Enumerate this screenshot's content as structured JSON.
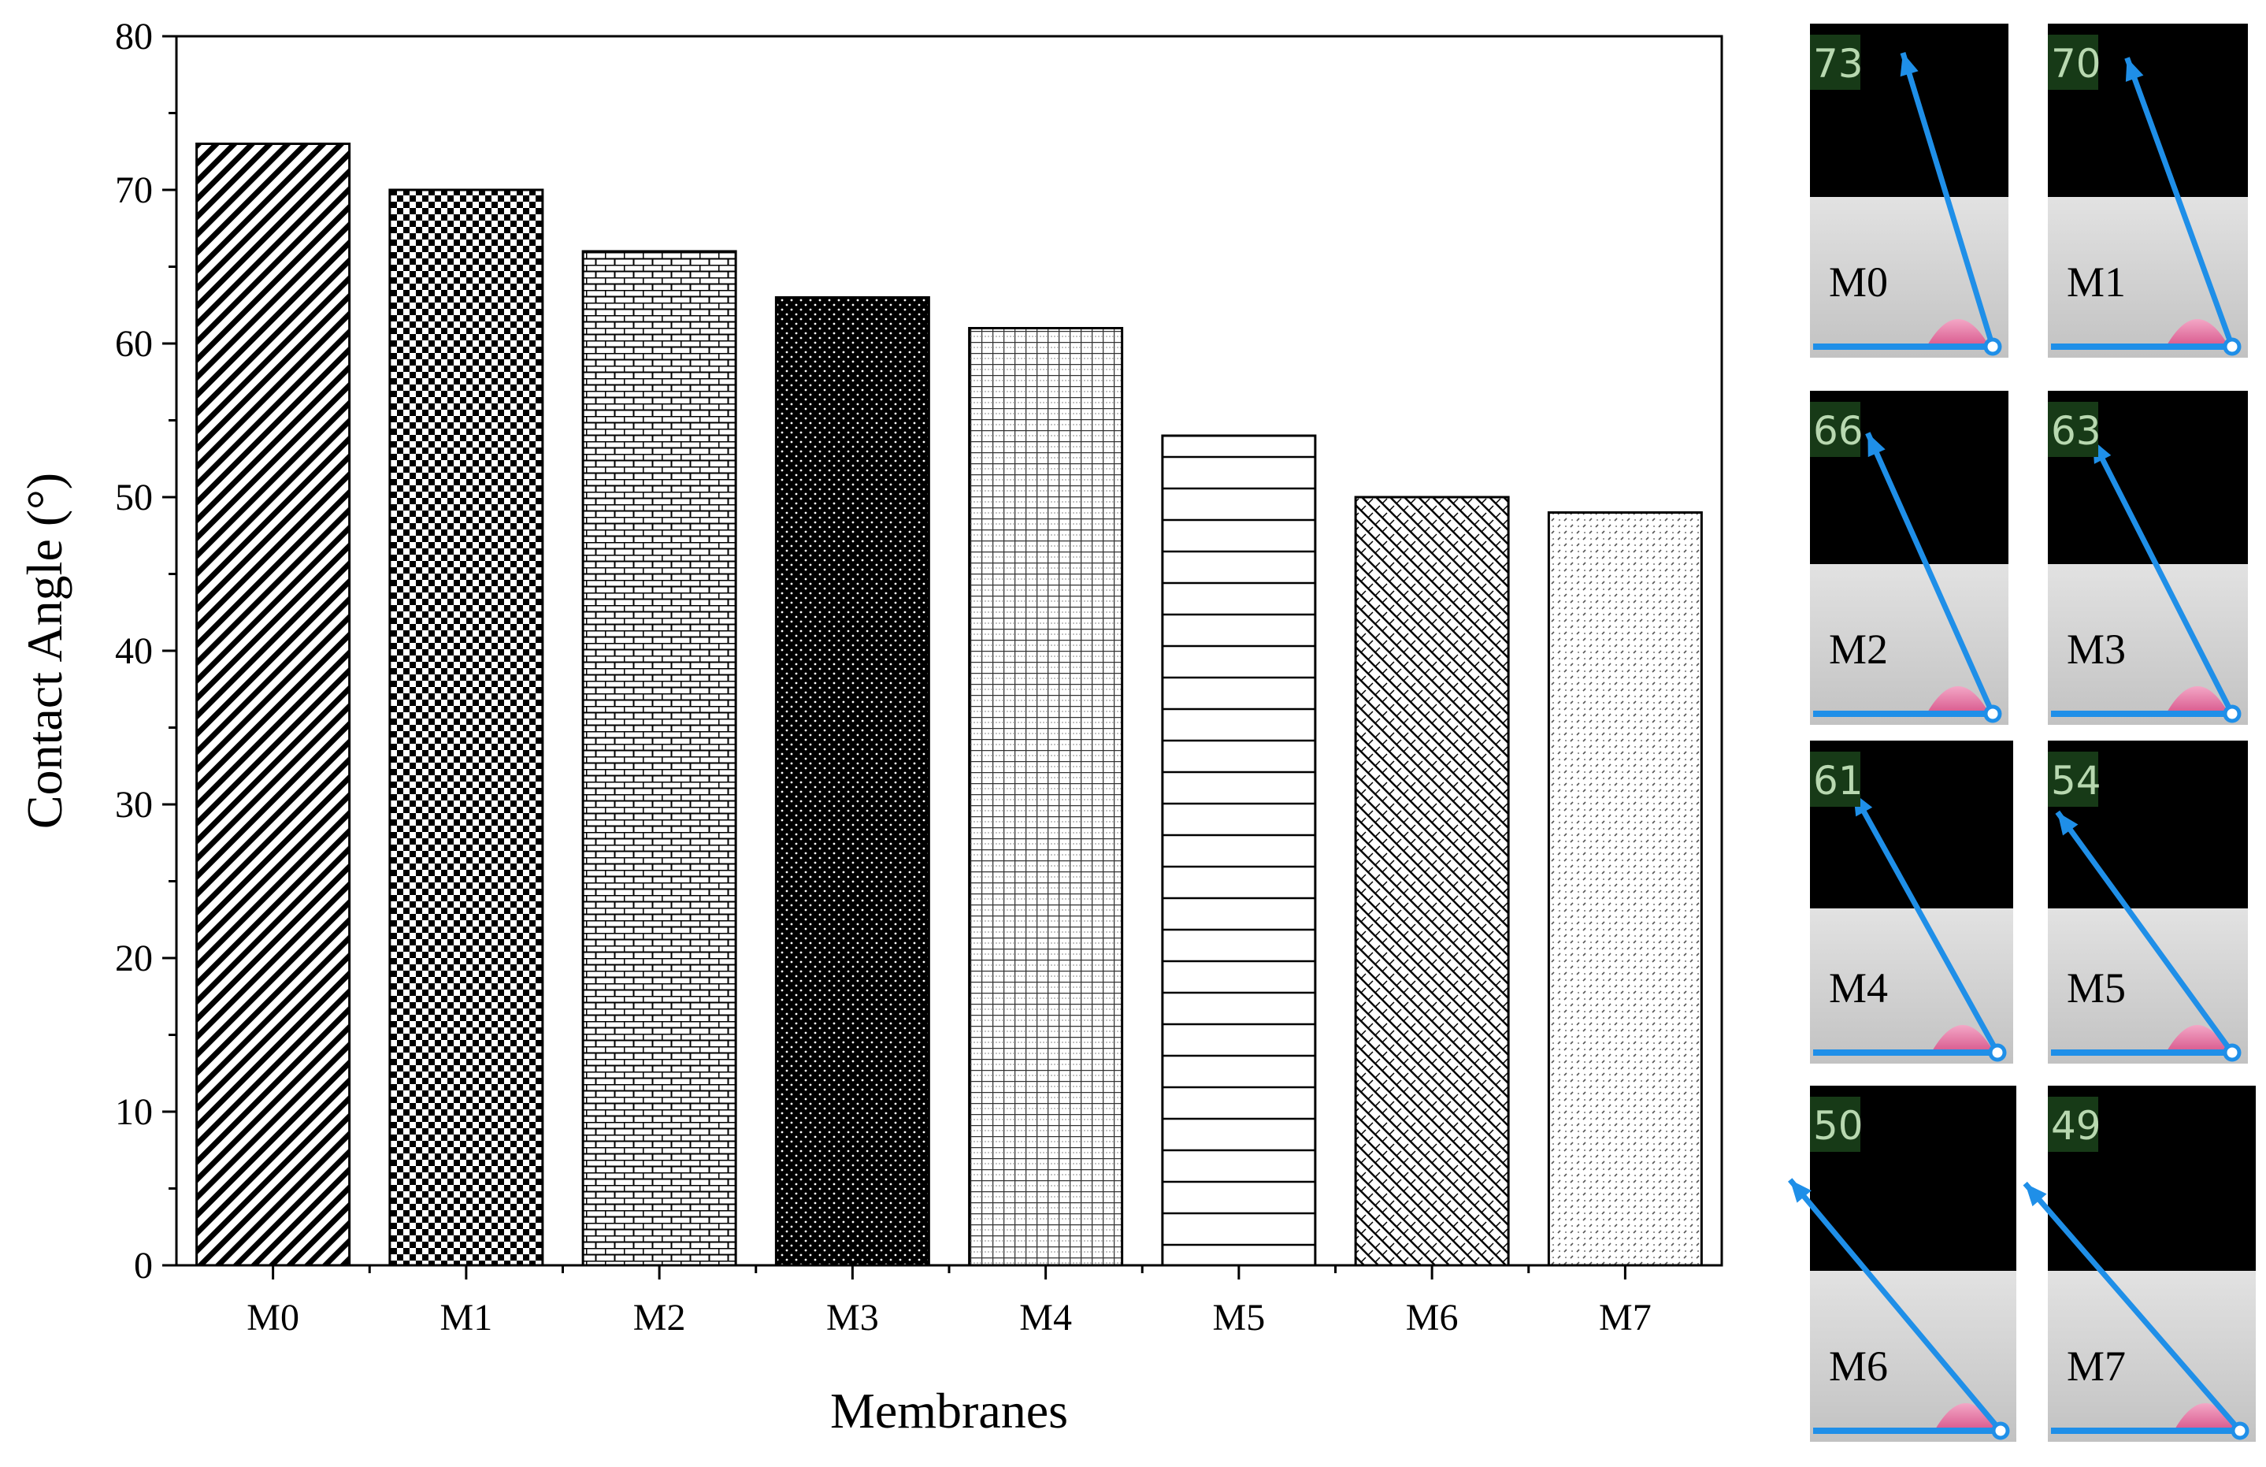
{
  "chart_data": {
    "type": "bar",
    "categories": [
      "M0",
      "M1",
      "M2",
      "M3",
      "M4",
      "M5",
      "M6",
      "M7"
    ],
    "values": [
      73,
      70,
      66,
      63,
      61,
      54,
      50,
      49
    ],
    "title": "",
    "xlabel": "Membranes",
    "ylabel": "Contact Angle (°)",
    "ylim": [
      0,
      80
    ],
    "yticks": [
      "0",
      "10",
      "20",
      "30",
      "40",
      "50",
      "60",
      "70",
      "80"
    ],
    "grid": false,
    "legend": "none",
    "bar_patterns": [
      "diagonal-lines",
      "checker",
      "brick",
      "black-dotted",
      "fine-grid",
      "horizontal-lines",
      "diagonal-weave",
      "light-dots"
    ]
  },
  "photos": [
    {
      "label": "M0",
      "angle_readout": "73"
    },
    {
      "label": "M1",
      "angle_readout": "70"
    },
    {
      "label": "M2",
      "angle_readout": "66"
    },
    {
      "label": "M3",
      "angle_readout": "63"
    },
    {
      "label": "M4",
      "angle_readout": "61"
    },
    {
      "label": "M5",
      "angle_readout": "54"
    },
    {
      "label": "M6",
      "angle_readout": "50"
    },
    {
      "label": "M7",
      "angle_readout": "49"
    }
  ],
  "colors": {
    "measurement_line": "#1f8fe8",
    "droplet": "#e87fa8",
    "readout_box": "#173a17",
    "photo_background": "#000000",
    "surface": "#d6d6d6"
  }
}
